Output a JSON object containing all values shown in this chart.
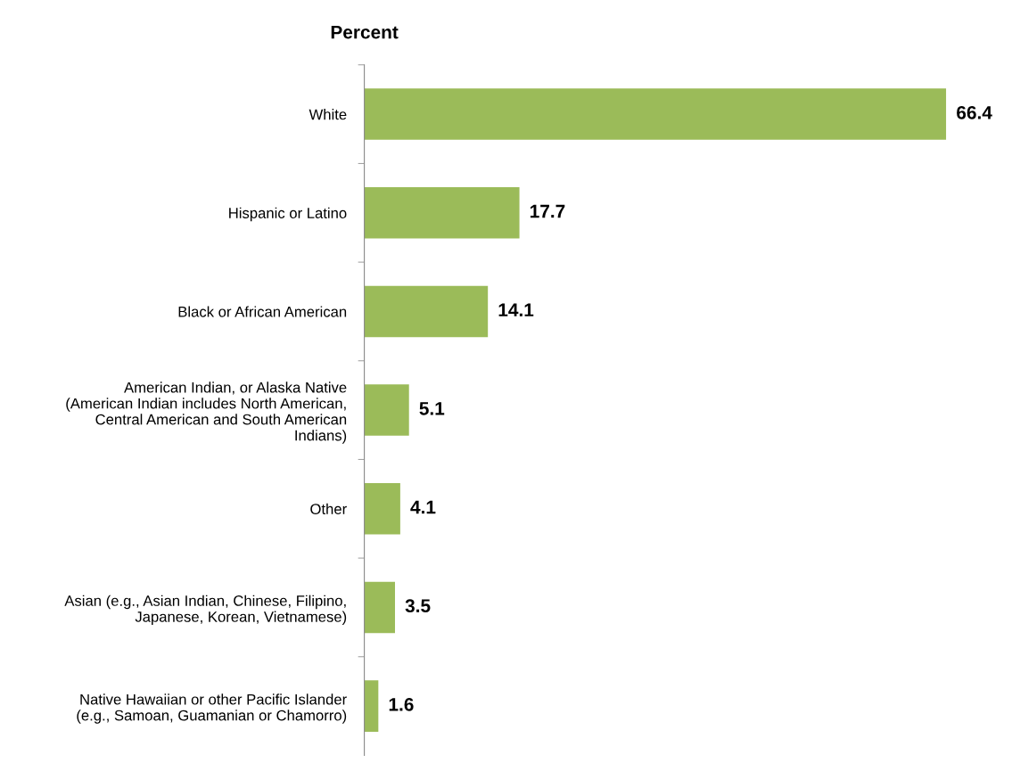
{
  "chart_data": {
    "type": "bar",
    "orientation": "horizontal",
    "title": "Percent",
    "categories": [
      "White",
      "Hispanic or Latino",
      "Black or African American",
      "American Indian, or Alaska Native\n(American Indian includes North American,\nCentral American and South American\nIndians)",
      "Other",
      "Asian (e.g., Asian Indian, Chinese, Filipino,\nJapanese, Korean, Vietnamese)",
      "Native Hawaiian or other Pacific Islander\n(e.g., Samoan, Guamanian or Chamorro)"
    ],
    "values": [
      66.4,
      17.7,
      14.1,
      5.1,
      4.1,
      3.5,
      1.6
    ],
    "color": "#9bbb59",
    "data_labels": true,
    "grid": false,
    "legend": false
  }
}
